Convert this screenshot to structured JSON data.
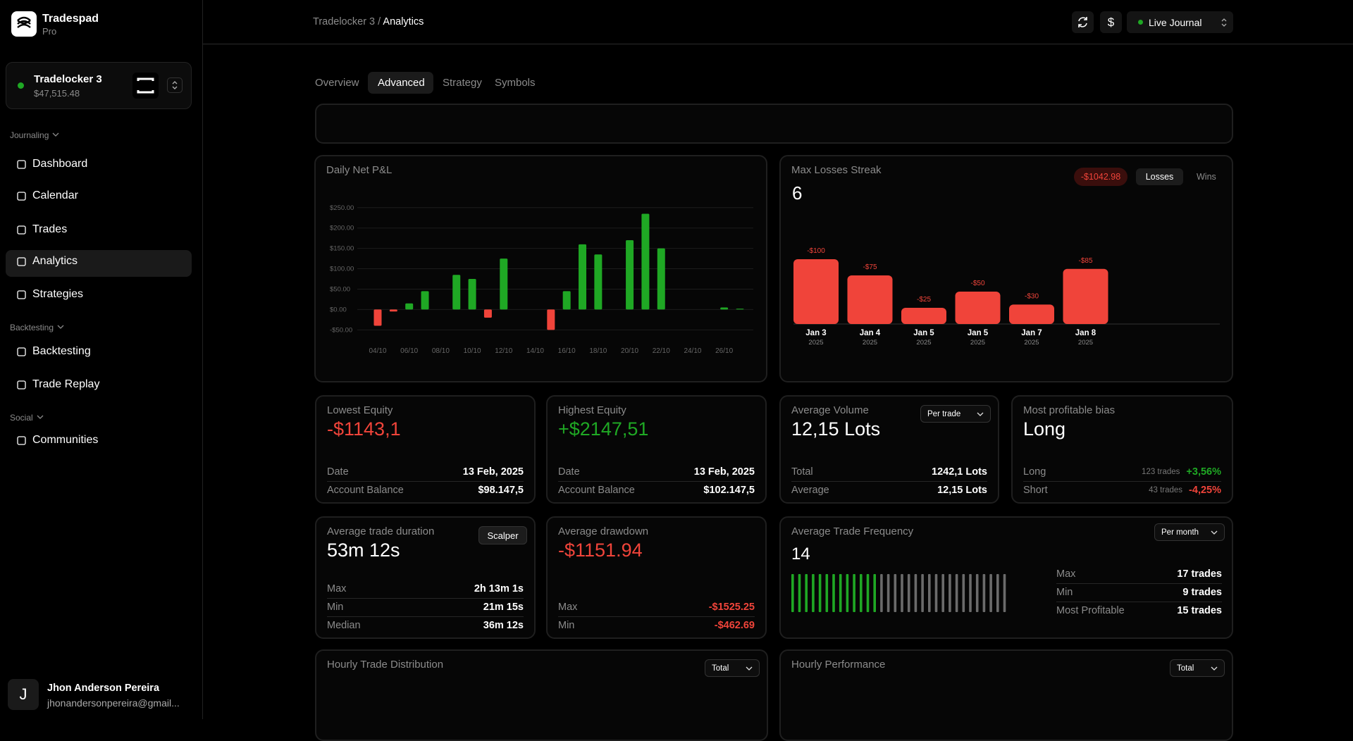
{
  "sidebar": {
    "brand": {
      "name": "Tradespad",
      "plan": "Pro"
    },
    "account": {
      "name": "Tradelocker 3",
      "balance": "$47,515.48"
    },
    "sections": [
      {
        "title": "Journaling",
        "items": [
          "Dashboard",
          "Calendar",
          "Trades",
          "Analytics",
          "Strategies"
        ]
      },
      {
        "title": "Backtesting",
        "items": [
          "Backtesting",
          "Trade Replay"
        ]
      },
      {
        "title": "Social",
        "items": [
          "Communities"
        ]
      }
    ],
    "user": {
      "initial": "J",
      "name": "Jhon Anderson Pereira",
      "email": "jhonandersonpereira@gmail..."
    }
  },
  "header": {
    "breadcrumb": [
      "Tradelocker 3 /",
      "Analytics"
    ],
    "currency_button": "$",
    "journal": "Live Journal"
  },
  "tabs": [
    "Overview",
    "Advanced",
    "Strategy",
    "Symbols"
  ],
  "chart_data": [
    {
      "type": "bar",
      "title": "Daily Net P&L",
      "categories": [
        "04/10",
        null,
        "06/10",
        null,
        "08/10",
        null,
        "10/10",
        null,
        "12/10",
        null,
        "14/10",
        null,
        "16/10",
        null,
        "18/10",
        null,
        "20/10",
        null,
        "22/10",
        null,
        "24/10",
        null,
        "26/10",
        null
      ],
      "values": [
        -40,
        -5,
        15,
        45,
        null,
        85,
        75,
        -20,
        125,
        null,
        null,
        -50,
        45,
        160,
        135,
        null,
        170,
        235,
        150,
        null,
        null,
        null,
        5,
        2
      ],
      "colors": {
        "positive": "#1fa824",
        "negative": "#f0443a"
      },
      "ylim": [
        -65,
        260
      ],
      "yticks": [
        {
          "value": -50,
          "label": "-$50.00"
        },
        {
          "value": 0,
          "label": "$0.00"
        },
        {
          "value": 50,
          "label": "$50.00"
        },
        {
          "value": 100,
          "label": "$100.00"
        },
        {
          "value": 150,
          "label": "$150.00"
        },
        {
          "value": 200,
          "label": "$200.00"
        },
        {
          "value": 250,
          "label": "$250.00"
        }
      ],
      "grid": true
    },
    {
      "type": "bar",
      "title": "Max Losses Streak",
      "headline": "6",
      "badge": "-$1042.98",
      "toggles": [
        "Losses",
        "Wins"
      ],
      "categories": [
        "Jan 3",
        "Jan 4",
        "Jan 5",
        "Jan 5",
        "Jan 7",
        "Jan 8"
      ],
      "sublabels": [
        "2025",
        "2025",
        "2025",
        "2025",
        "2025",
        "2025"
      ],
      "values": [
        -100,
        -75,
        -25,
        -50,
        -30,
        -85
      ],
      "value_labels": [
        "-$100",
        "-$75",
        "-$25",
        "-$50",
        "-$30",
        "-$85"
      ],
      "color": "#f0443a"
    }
  ],
  "cards": [
    {
      "title": "Lowest Equity",
      "value": "-$1143,1",
      "value_color": "#f0443a",
      "rows": [
        {
          "label": "Date",
          "value": "13 Feb, 2025"
        },
        {
          "label": "Account Balance",
          "value": "$98.147,5"
        }
      ]
    },
    {
      "title": "Highest Equity",
      "value": "+$2147,51",
      "value_color": "#1fa824",
      "rows": [
        {
          "label": "Date",
          "value": "13 Feb, 2025"
        },
        {
          "label": "Account Balance",
          "value": "$102.147,5"
        }
      ]
    },
    {
      "title": "Average Volume",
      "value": "12,15 Lots",
      "control": "Per trade",
      "rows": [
        {
          "label": "Total",
          "value": "1242,1 Lots"
        },
        {
          "label": "Average",
          "value": "12,15 Lots"
        }
      ]
    },
    {
      "title": "Most profitable bias",
      "value": "Long",
      "rows": [
        {
          "label": "Long",
          "note": "123 trades",
          "value": "+3,56%",
          "value_color": "#1fa824"
        },
        {
          "label": "Short",
          "note": "43 trades",
          "value": "-4,25%",
          "value_color": "#f0443a"
        }
      ]
    },
    {
      "title": "Average trade duration",
      "value": "53m 12s",
      "badge": "Scalper",
      "rows": [
        {
          "label": "Max",
          "value": "2h 13m 1s"
        },
        {
          "label": "Min",
          "value": "21m 15s"
        },
        {
          "label": "Median",
          "value": "36m 12s"
        }
      ]
    },
    {
      "title": "Average drawdown",
      "value": "-$1151.94",
      "value_color": "#f0443a",
      "rows": [
        {
          "label": "Max",
          "value": "-$1525.25",
          "value_color": "#f0443a"
        },
        {
          "label": "Min",
          "value": "-$462.69",
          "value_color": "#f0443a"
        }
      ]
    },
    {
      "title": "Average Trade Frequency",
      "value": "14",
      "control": "Per month",
      "rows": [
        {
          "label": "Max",
          "value": "17 trades"
        },
        {
          "label": "Min",
          "value": "9 trades"
        },
        {
          "label": "Most Profitable",
          "value": "15 trades"
        }
      ]
    },
    {
      "title": "Hourly Trade Distribution",
      "control": "Total"
    },
    {
      "title": "Hourly Performance",
      "control": "Total"
    }
  ]
}
